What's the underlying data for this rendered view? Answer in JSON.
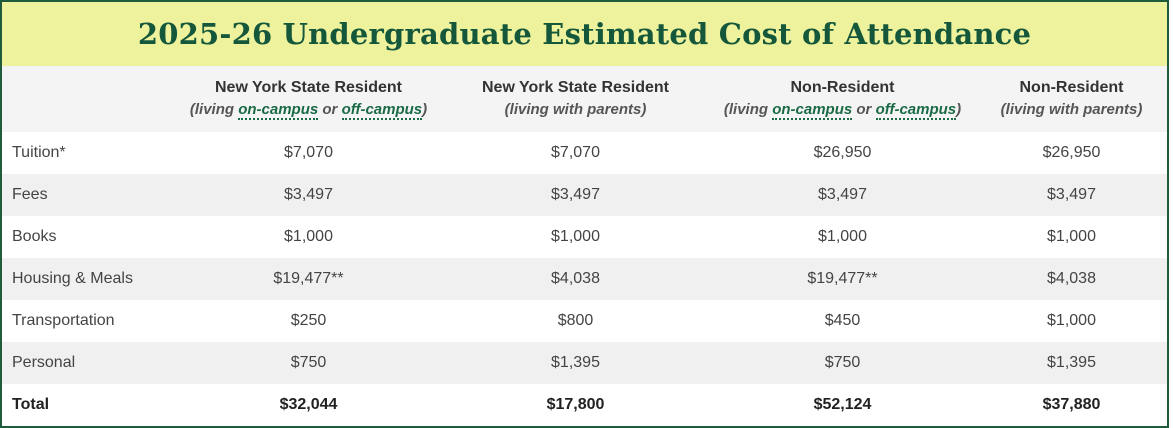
{
  "title": "2025-26 Undergraduate Estimated Cost of Attendance",
  "columns": [
    {
      "header": "New York State Resident",
      "sub_pre": "(living ",
      "link1": "on-campus",
      "sub_mid": " or ",
      "link2": "off-campus",
      "sub_post": ")"
    },
    {
      "header": "New York State Resident",
      "sub": "(living with parents)"
    },
    {
      "header": "Non-Resident",
      "sub_pre": "(living ",
      "link1": "on-campus",
      "sub_mid": " or ",
      "link2": "off-campus",
      "sub_post": ")"
    },
    {
      "header": "Non-Resident",
      "sub": "(living with parents)"
    }
  ],
  "rows": [
    {
      "label": "Tuition*",
      "values": [
        "$7,070",
        "$7,070",
        "$26,950",
        "$26,950"
      ]
    },
    {
      "label": "Fees",
      "values": [
        "$3,497",
        "$3,497",
        "$3,497",
        "$3,497"
      ]
    },
    {
      "label": "Books",
      "values": [
        "$1,000",
        "$1,000",
        "$1,000",
        "$1,000"
      ]
    },
    {
      "label": "Housing & Meals",
      "values": [
        "$19,477**",
        "$4,038",
        "$19,477**",
        "$4,038"
      ]
    },
    {
      "label": "Transportation",
      "values": [
        "$250",
        "$800",
        "$450",
        "$1,000"
      ]
    },
    {
      "label": "Personal",
      "values": [
        "$750",
        "$1,395",
        "$750",
        "$1,395"
      ]
    },
    {
      "label": "Total",
      "values": [
        "$32,044",
        "$17,800",
        "$52,124",
        "$37,880"
      ]
    }
  ],
  "colors": {
    "title_bg": "#eef29c",
    "title_text": "#15573a",
    "border": "#1f5c3c",
    "link": "#1a6b45",
    "stripe": "#f0f0f0"
  }
}
